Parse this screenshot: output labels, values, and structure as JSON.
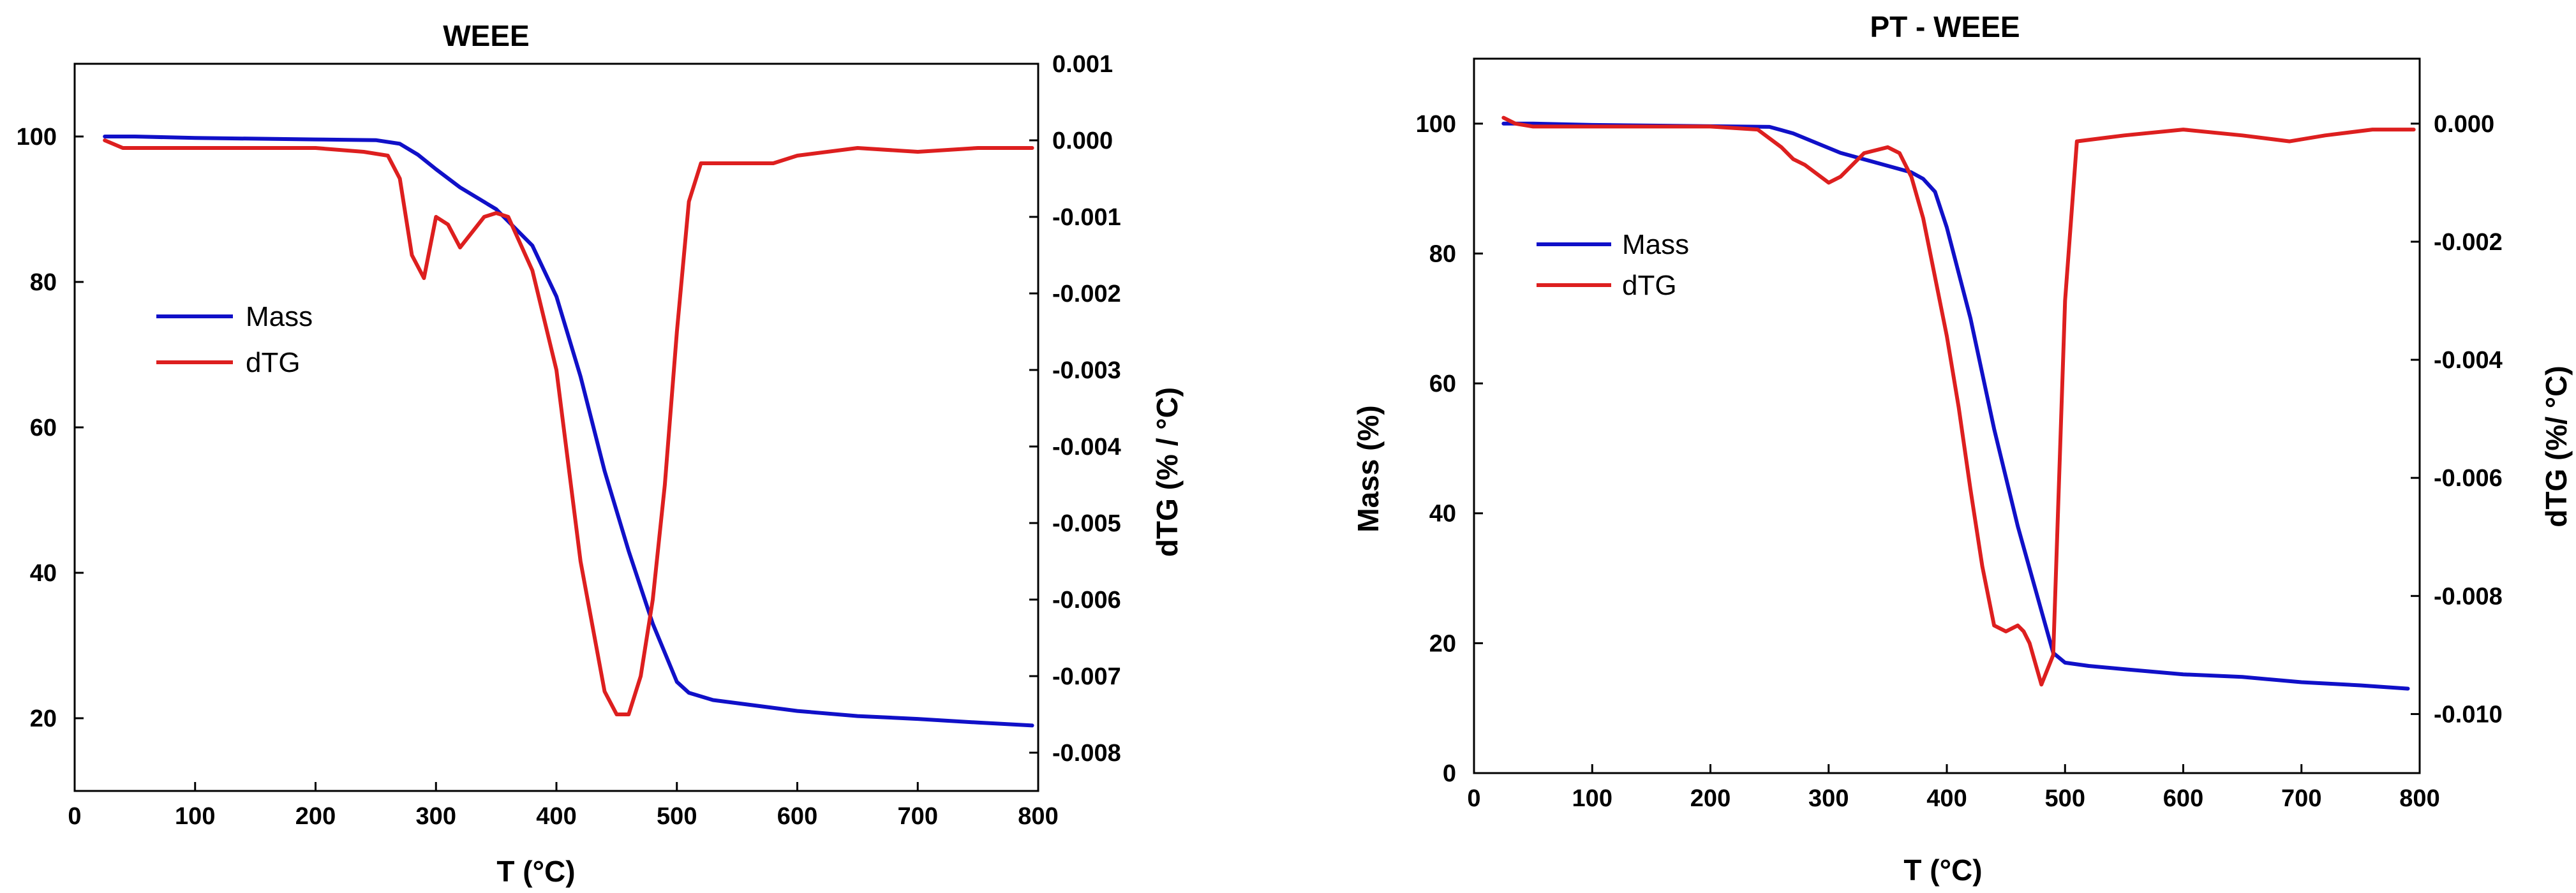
{
  "colors": {
    "mass": "#1010c8",
    "dtg": "#dd1f1f",
    "axis": "#000000"
  },
  "chart_data": [
    {
      "type": "line",
      "title": "WEEE",
      "xlabel": "T (°C)",
      "ylabel": "",
      "y2label": "dTG (% / °C)",
      "xlim": [
        0,
        800
      ],
      "ylim": [
        10,
        110
      ],
      "y2lim": [
        -0.0085,
        0.001
      ],
      "xticks": [
        0,
        100,
        200,
        300,
        400,
        500,
        600,
        700,
        800
      ],
      "yticks": [
        20,
        40,
        60,
        80,
        100
      ],
      "y2ticks": [
        0.001,
        0.0,
        -0.001,
        -0.002,
        -0.003,
        -0.004,
        -0.005,
        -0.006,
        -0.007,
        -0.008
      ],
      "y2tick_labels": [
        "0.001",
        "0.000",
        "-0.001",
        "-0.002",
        "-0.003",
        "-0.004",
        "-0.005",
        "-0.006",
        "-0.007",
        "-0.008"
      ],
      "grid": false,
      "legend": {
        "position": "center-left",
        "entries": [
          "Mass",
          "dTG"
        ]
      },
      "series": [
        {
          "name": "Mass",
          "axis": "left",
          "color": "mass",
          "x": [
            25,
            50,
            100,
            150,
            200,
            250,
            270,
            285,
            300,
            320,
            350,
            380,
            400,
            420,
            440,
            460,
            480,
            500,
            510,
            530,
            600,
            650,
            700,
            750,
            795
          ],
          "y": [
            100,
            100,
            99.8,
            99.7,
            99.6,
            99.5,
            99,
            97.5,
            95.5,
            93,
            90,
            85,
            78,
            67,
            54,
            43,
            33,
            25,
            23.5,
            22.5,
            21,
            20.3,
            19.9,
            19.4,
            19
          ]
        },
        {
          "name": "dTG",
          "axis": "right",
          "color": "dtg",
          "x": [
            25,
            40,
            100,
            150,
            200,
            240,
            260,
            270,
            280,
            290,
            300,
            310,
            320,
            340,
            350,
            360,
            380,
            400,
            420,
            440,
            450,
            460,
            470,
            480,
            490,
            500,
            510,
            520,
            540,
            560,
            580,
            600,
            650,
            700,
            750,
            795
          ],
          "y": [
            0.0,
            -0.0001,
            -0.0001,
            -0.0001,
            -0.0001,
            -0.00015,
            -0.0002,
            -0.0005,
            -0.0015,
            -0.0018,
            -0.001,
            -0.0011,
            -0.0014,
            -0.001,
            -0.00095,
            -0.001,
            -0.0017,
            -0.003,
            -0.0055,
            -0.0072,
            -0.0075,
            -0.0075,
            -0.007,
            -0.006,
            -0.0045,
            -0.0025,
            -0.0008,
            -0.0003,
            -0.0003,
            -0.0003,
            -0.0003,
            -0.0002,
            -0.0001,
            -0.00015,
            -0.0001,
            -0.0001
          ]
        }
      ]
    },
    {
      "type": "line",
      "title": "PT - WEEE",
      "xlabel": "T (°C)",
      "ylabel": "Mass (%)",
      "y2label": "dTG (%/ °C)",
      "xlim": [
        0,
        800
      ],
      "ylim": [
        0,
        110
      ],
      "y2lim": [
        -0.011,
        0.0011
      ],
      "xticks": [
        0,
        100,
        200,
        300,
        400,
        500,
        600,
        700,
        800
      ],
      "yticks": [
        0,
        20,
        40,
        60,
        80,
        100
      ],
      "y2ticks": [
        0.0,
        -0.002,
        -0.004,
        -0.006,
        -0.008,
        -0.01
      ],
      "y2tick_labels": [
        "0.000",
        "-0.002",
        "-0.004",
        "-0.006",
        "-0.008",
        "-0.010"
      ],
      "grid": false,
      "legend": {
        "position": "top-left",
        "entries": [
          "Mass",
          "dTG"
        ]
      },
      "series": [
        {
          "name": "Mass",
          "axis": "left",
          "color": "mass",
          "x": [
            25,
            50,
            100,
            150,
            200,
            250,
            270,
            290,
            310,
            330,
            350,
            370,
            380,
            390,
            400,
            420,
            440,
            460,
            480,
            490,
            500,
            520,
            550,
            600,
            650,
            700,
            750,
            790
          ],
          "y": [
            100,
            100,
            99.8,
            99.7,
            99.6,
            99.5,
            98.5,
            97,
            95.5,
            94.5,
            93.5,
            92.5,
            91.5,
            89.5,
            84,
            70,
            53,
            38,
            25,
            18.5,
            17,
            16.5,
            16,
            15.2,
            14.8,
            14,
            13.5,
            13
          ]
        },
        {
          "name": "dTG",
          "axis": "right",
          "color": "dtg",
          "x": [
            25,
            35,
            50,
            100,
            150,
            200,
            240,
            260,
            270,
            280,
            300,
            310,
            330,
            350,
            360,
            370,
            380,
            390,
            400,
            410,
            420,
            430,
            440,
            450,
            460,
            465,
            470,
            480,
            490,
            500,
            510,
            550,
            600,
            650,
            690,
            720,
            760,
            795
          ],
          "y": [
            0.0001,
            0.0,
            -5e-05,
            -5e-05,
            -5e-05,
            -5e-05,
            -0.0001,
            -0.0004,
            -0.0006,
            -0.0007,
            -0.001,
            -0.0009,
            -0.0005,
            -0.0004,
            -0.0005,
            -0.0009,
            -0.0016,
            -0.0026,
            -0.0036,
            -0.0048,
            -0.0062,
            -0.0075,
            -0.0085,
            -0.0086,
            -0.0085,
            -0.0086,
            -0.0088,
            -0.0095,
            -0.009,
            -0.003,
            -0.0003,
            -0.0002,
            -0.0001,
            -0.0002,
            -0.0003,
            -0.0002,
            -0.0001,
            -0.0001
          ]
        }
      ]
    }
  ]
}
